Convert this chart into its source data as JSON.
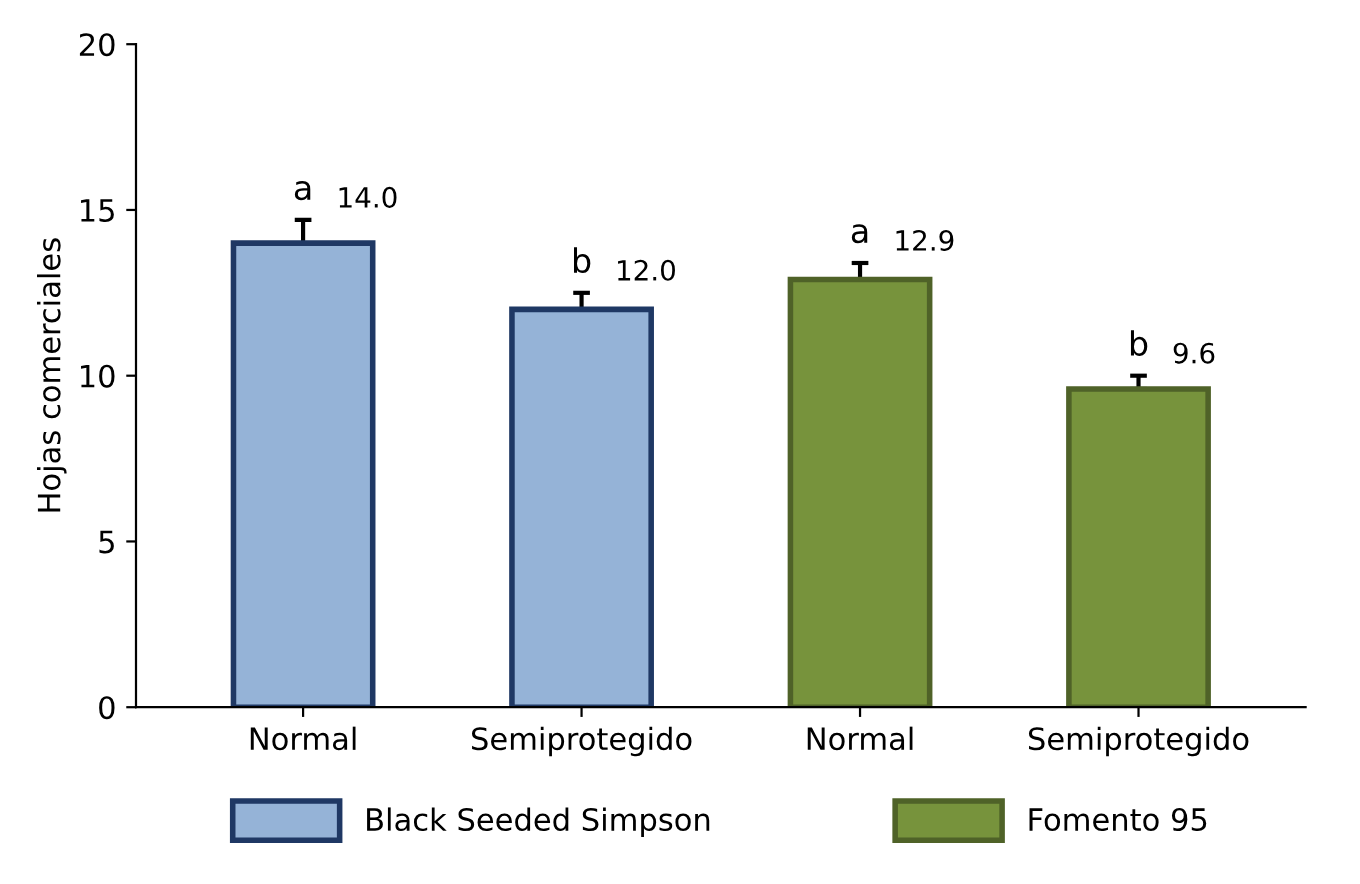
{
  "chart_data": {
    "type": "bar",
    "ylabel": "Hojas comerciales",
    "categories": [
      "Normal",
      "Semiprotegido",
      "Normal",
      "Semiprotegido"
    ],
    "series": [
      {
        "name": "Black Seeded Simpson",
        "color": "#95b3d7",
        "values": [
          14.0,
          12.0,
          null,
          null
        ],
        "value_labels": [
          "14.0",
          "12.0",
          null,
          null
        ],
        "errors": [
          [
            14.0,
            14.7
          ],
          [
            12.0,
            12.5
          ],
          null,
          null
        ]
      },
      {
        "name": "Fomento 95",
        "color": "#77933c",
        "values": [
          null,
          null,
          12.9,
          9.6
        ],
        "value_labels": [
          null,
          null,
          "12.9",
          "9.6"
        ],
        "errors": [
          null,
          null,
          [
            12.9,
            13.4
          ],
          [
            9.6,
            10.0
          ]
        ]
      }
    ],
    "ylim": [
      0,
      20
    ],
    "yticks": [
      0,
      5,
      10,
      15,
      20
    ],
    "grid": false,
    "legend": "bottom",
    "annotations": [
      "a",
      "b",
      "a",
      "b"
    ]
  }
}
